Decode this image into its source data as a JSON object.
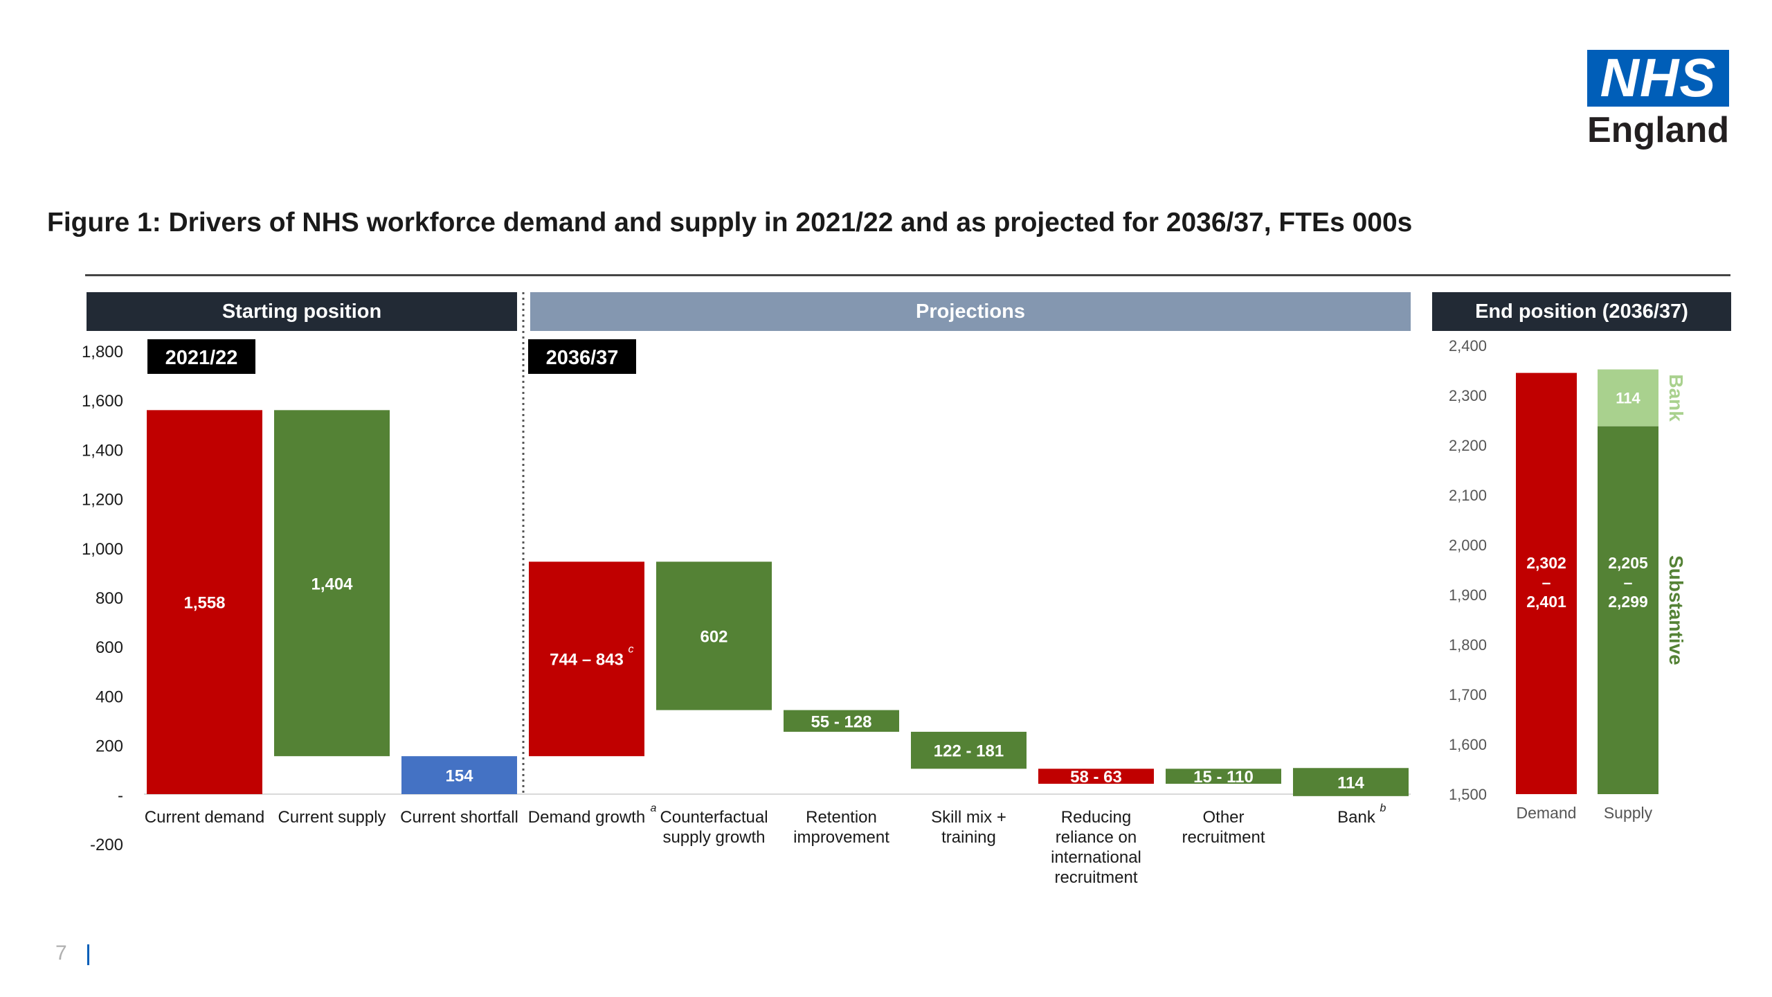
{
  "logo": {
    "mark": "NHS",
    "subtitle": "England",
    "color": "#005EB8"
  },
  "page": {
    "title": "Figure 1: Drivers of NHS workforce demand and supply in 2021/22 and as projected for 2036/37, FTEs 000s",
    "number": "7"
  },
  "colors": {
    "demand": "#C00000",
    "supply": "#548235",
    "shortfall": "#4472C4",
    "bank": "#A9D18E",
    "dark_header": "#222A35",
    "projections_header": "#8497B0"
  },
  "chart_data": [
    {
      "type": "bar",
      "section": "Starting position",
      "badge": "2021/22",
      "yticks": [
        "1,800",
        "1,600",
        "1,400",
        "1,200",
        "1,000",
        "800",
        "600",
        "400",
        "200",
        "-",
        "-200"
      ],
      "ylim": [
        -200,
        1800
      ],
      "bars": [
        {
          "category": "Current demand",
          "base": 0,
          "value": 1558,
          "label": "1,558",
          "color_key": "demand"
        },
        {
          "category": "Current supply",
          "base": 154,
          "value": 1404,
          "label": "1,404",
          "color_key": "supply"
        },
        {
          "category": "Current shortfall",
          "base": 0,
          "value": 154,
          "label": "154",
          "color_key": "shortfall"
        }
      ]
    },
    {
      "type": "bar",
      "section": "Projections",
      "badge": "2036/37",
      "bars": [
        {
          "category": "Demand growth",
          "sup": "a",
          "base": 154,
          "value": 789,
          "label": "744 – 843",
          "label_sup": "c",
          "color_key": "demand"
        },
        {
          "category": "Counterfactual supply growth",
          "base": 341,
          "value": 602,
          "label": "602",
          "color_key": "supply"
        },
        {
          "category": "Retention improvement",
          "base": 253,
          "value": 88,
          "label": "55 - 128",
          "color_key": "supply"
        },
        {
          "category": "Skill mix + training",
          "base": 103,
          "value": 150,
          "label": "122 - 181",
          "color_key": "supply"
        },
        {
          "category": "Reducing reliance on international recruitment",
          "base": 103,
          "value": -61,
          "label": "58 - 63",
          "color_key": "demand"
        },
        {
          "category": "Other recruitment",
          "base": 42,
          "value": 61,
          "label": "15 - 110",
          "color_key": "supply"
        },
        {
          "category": "Bank",
          "sup": "b",
          "base": -8,
          "value": 114,
          "label": "114",
          "color_key": "supply"
        }
      ]
    },
    {
      "type": "bar",
      "section": "End position (2036/37)",
      "yticks": [
        "2,400",
        "2,300",
        "2,200",
        "2,100",
        "2,000",
        "1,900",
        "1,800",
        "1,700",
        "1,600",
        "1,500"
      ],
      "ylim": [
        1500,
        2400
      ],
      "bars": [
        {
          "category": "Demand",
          "segments": [
            {
              "value": 2345,
              "label_lines": [
                "2,302",
                "–",
                "2,401"
              ],
              "color_key": "demand"
            }
          ]
        },
        {
          "category": "Supply",
          "segments": [
            {
              "name": "Substantive",
              "value": 2238,
              "label_lines": [
                "2,205",
                "–",
                "2,299"
              ],
              "color_key": "supply"
            },
            {
              "name": "Bank",
              "value": 114,
              "label": "114",
              "color_key": "bank"
            }
          ]
        }
      ],
      "side_labels": [
        "Bank",
        "Substantive"
      ]
    }
  ]
}
